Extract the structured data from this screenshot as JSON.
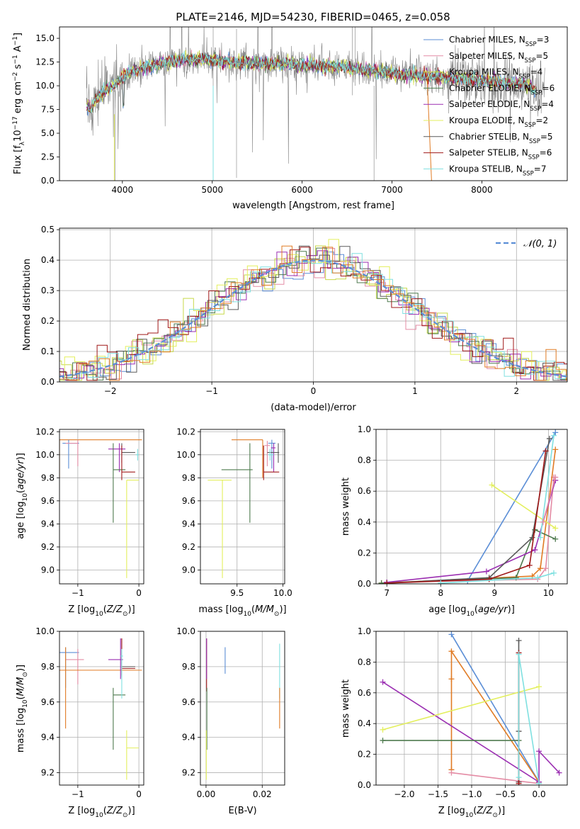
{
  "figure": {
    "title": "PLATE=2146, MJD=54230, FIBERID=0465, z=0.058"
  },
  "colors": {
    "chabrier_miles": "#5b8ed6",
    "salpeter_miles": "#e48ca5",
    "kroupa_miles": "#c7d94a",
    "chabrier_elodie": "#4e7a4e",
    "salpeter_elodie": "#9b2fb2",
    "kroupa_elodie": "#e3ef5c",
    "chabrier_stelib": "#5a5a5a",
    "salpeter_stelib": "#a01818",
    "kroupa_stelib": "#7fe0e0",
    "orange": "#e07b24",
    "data_grey": "#808080",
    "normal_curve": "#5b8ed6"
  },
  "chart_data": [
    {
      "id": "spectrum",
      "type": "line",
      "title": "PLATE=2146, MJD=54230, FIBERID=0465, z=0.058",
      "xlabel": "wavelength [Angstrom, rest frame]",
      "ylabel": "Flux [f_λ 10^-17 erg cm^-2 s^-1 A^-1]",
      "xlim": [
        3300,
        8950
      ],
      "ylim": [
        0,
        16.2
      ],
      "xticks": [
        "4000",
        "5000",
        "6000",
        "7000",
        "8000"
      ],
      "yticks": [
        "0.0",
        "2.5",
        "5.0",
        "7.5",
        "10.0",
        "12.5",
        "15.0"
      ],
      "legend": "top-right",
      "grid": false,
      "continuum": {
        "x": [
          3600,
          3650,
          3700,
          3800,
          3900,
          4000,
          4100,
          4200,
          4300,
          4400,
          4500,
          4700,
          4900,
          5100,
          5300,
          5500,
          5700,
          5900,
          6100,
          6300,
          6500,
          6700,
          6900,
          7100,
          7300,
          7500,
          7700,
          7900,
          8100,
          8300,
          8500,
          8700
        ],
        "y": [
          8.0,
          7.5,
          8.5,
          9.5,
          10.0,
          11.0,
          11.5,
          11.8,
          12.0,
          12.3,
          12.5,
          12.8,
          12.8,
          12.6,
          12.4,
          12.4,
          12.3,
          12.2,
          12.1,
          12.0,
          11.9,
          11.7,
          11.5,
          11.2,
          11.1,
          10.9,
          10.8,
          10.7,
          10.5,
          10.3,
          10.0,
          9.2
        ]
      },
      "series": [
        {
          "name": "Chabrier MILES, N_SSP=3",
          "key": "chabrier_miles",
          "dip": 0.0
        },
        {
          "name": "Salpeter MILES, N_SSP=5",
          "key": "salpeter_miles",
          "dip": 0.0
        },
        {
          "name": "Kroupa MILES, N_SSP=4",
          "key": "kroupa_miles",
          "dip": 0.0
        },
        {
          "name": "Chabrier ELODIE, N_SSP=6",
          "key": "chabrier_elodie",
          "dip": 0.0
        },
        {
          "name": "Salpeter ELODIE, N_SSP=4",
          "key": "salpeter_elodie",
          "dip": 0.0
        },
        {
          "name": "Kroupa ELODIE, N_SSP=2",
          "key": "kroupa_elodie",
          "dip": 0.0
        },
        {
          "name": "Chabrier STELIB, N_SSP=5",
          "key": "chabrier_stelib",
          "dip": 0.0
        },
        {
          "name": "Salpeter STELIB, N_SSP=6",
          "key": "salpeter_stelib",
          "dip": 0.0
        },
        {
          "name": "Kroupa STELIB, N_SSP=7",
          "key": "kroupa_stelib",
          "dip": 0.0
        }
      ]
    },
    {
      "id": "residuals",
      "type": "line",
      "xlabel": "(data-model)/error",
      "ylabel": "Normed distribution",
      "xlim": [
        -2.5,
        2.5
      ],
      "ylim": [
        0,
        0.505
      ],
      "xticks": [
        -2,
        -1,
        0,
        1,
        2
      ],
      "xtick_labels": [
        "−2",
        "−1",
        "0",
        "1",
        "2"
      ],
      "yticks": [
        0.0,
        0.1,
        0.2,
        0.3,
        0.4,
        0.5
      ],
      "ytick_labels": [
        "0.0",
        "0.1",
        "0.2",
        "0.3",
        "0.4",
        "0.5"
      ],
      "grid": true,
      "legend": "top-right",
      "legend_label": "𝒩(0, 1)",
      "bin_width": 0.1,
      "curve": "normal(0,1)"
    },
    {
      "id": "z_age",
      "type": "scatter",
      "xlabel": "Z [log10(Z/Z⊙)]",
      "ylabel": "age [log10(age/yr)]",
      "xlim": [
        -1.3,
        0.08
      ],
      "ylim": [
        8.88,
        10.22
      ],
      "xticks": [
        -1,
        0
      ],
      "xtick_labels": [
        "−1",
        "0"
      ],
      "yticks": [
        9.0,
        9.2,
        9.4,
        9.6,
        9.8,
        10.0,
        10.2
      ],
      "ytick_labels": [
        "9.0",
        "9.2",
        "9.4",
        "9.6",
        "9.8",
        "10.0",
        "10.2"
      ],
      "grid": true,
      "points": [
        {
          "key": "orange",
          "x": -1.3,
          "xe": [
            -1.3,
            0.05
          ],
          "y": 10.13,
          "ye": [
            9.8,
            10.13
          ]
        },
        {
          "key": "chabrier_miles",
          "x": -1.15,
          "xe": [
            -1.25,
            -0.98
          ],
          "y": 10.1,
          "ye": [
            9.88,
            10.13
          ]
        },
        {
          "key": "salpeter_miles",
          "x": -1.0,
          "xe": [
            -1.2,
            -1.0
          ],
          "y": 10.1,
          "ye": [
            9.9,
            10.13
          ]
        },
        {
          "key": "salpeter_elodie",
          "x": -0.32,
          "xe": [
            -0.5,
            -0.22
          ],
          "y": 10.05,
          "ye": [
            9.85,
            10.1
          ]
        },
        {
          "key": "chabrier_stelib",
          "x": -0.28,
          "xe": [
            -0.28,
            -0.06
          ],
          "y": 10.02,
          "ye": [
            9.93,
            10.1
          ]
        },
        {
          "key": "chabrier_elodie",
          "x": -0.42,
          "xe": [
            -0.42,
            -0.22
          ],
          "y": 9.87,
          "ye": [
            9.41,
            10.1
          ]
        },
        {
          "key": "salpeter_stelib",
          "x": -0.28,
          "xe": [
            -0.28,
            -0.06
          ],
          "y": 9.85,
          "ye": [
            9.78,
            10.08
          ]
        },
        {
          "key": "kroupa_elodie",
          "x": -0.2,
          "xe": [
            -0.2,
            0.0
          ],
          "y": 9.78,
          "ye": [
            8.93,
            9.78
          ]
        },
        {
          "key": "kroupa_stelib",
          "x": -0.02,
          "xe": [
            -0.05,
            0.0
          ],
          "y": 10.0,
          "ye": [
            9.95,
            10.05
          ]
        }
      ]
    },
    {
      "id": "mass_age",
      "type": "scatter",
      "xlabel": "mass [log10(M/M⊙)]",
      "ylabel": "",
      "xlim": [
        9.1,
        10.02
      ],
      "ylim": [
        8.88,
        10.22
      ],
      "xticks": [
        9.5,
        10.0
      ],
      "xtick_labels": [
        "9.5",
        "10.0"
      ],
      "yticks": [
        9.0,
        9.2,
        9.4,
        9.6,
        9.8,
        10.0,
        10.2
      ],
      "ytick_labels": [
        "9.0",
        "9.2",
        "9.4",
        "9.6",
        "9.8",
        "10.0",
        "10.2"
      ],
      "grid": true,
      "points": [
        {
          "key": "orange",
          "x": 9.78,
          "xe": [
            9.44,
            9.78
          ],
          "y": 10.13,
          "ye": [
            9.8,
            10.13
          ]
        },
        {
          "key": "chabrier_miles",
          "x": 9.88,
          "xe": [
            9.84,
            9.92
          ],
          "y": 10.1,
          "ye": [
            9.88,
            10.13
          ]
        },
        {
          "key": "salpeter_miles",
          "x": 9.83,
          "xe": [
            9.8,
            9.86
          ],
          "y": 10.08,
          "ye": [
            9.9,
            10.12
          ]
        },
        {
          "key": "salpeter_elodie",
          "x": 9.9,
          "xe": [
            9.87,
            9.92
          ],
          "y": 10.06,
          "ye": [
            9.85,
            10.1
          ]
        },
        {
          "key": "chabrier_stelib",
          "x": 9.95,
          "xe": [
            9.83,
            9.96
          ],
          "y": 10.02,
          "ye": [
            9.93,
            10.1
          ]
        },
        {
          "key": "chabrier_elodie",
          "x": 9.64,
          "xe": [
            9.33,
            9.67
          ],
          "y": 9.87,
          "ye": [
            9.41,
            10.1
          ]
        },
        {
          "key": "salpeter_stelib",
          "x": 9.79,
          "xe": [
            9.79,
            9.96
          ],
          "y": 9.85,
          "ye": [
            9.78,
            10.08
          ]
        },
        {
          "key": "kroupa_elodie",
          "x": 9.34,
          "xe": [
            9.18,
            9.44
          ],
          "y": 9.78,
          "ye": [
            8.93,
            9.78
          ]
        },
        {
          "key": "kroupa_stelib",
          "x": 9.86,
          "xe": [
            9.84,
            9.9
          ],
          "y": 10.0,
          "ye": [
            9.95,
            10.05
          ]
        }
      ]
    },
    {
      "id": "age_weight",
      "type": "line",
      "xlabel": "age [log10(age/yr)]",
      "ylabel": "mass weight",
      "xlim": [
        6.8,
        10.35
      ],
      "ylim": [
        0,
        1.0
      ],
      "xticks": [
        7,
        8,
        9,
        10
      ],
      "xtick_labels": [
        "7",
        "8",
        "9",
        "10"
      ],
      "yticks": [
        0.0,
        0.2,
        0.4,
        0.6,
        0.8,
        1.0
      ],
      "ytick_labels": [
        "0.0",
        "0.2",
        "0.4",
        "0.6",
        "0.8",
        "1.0"
      ],
      "grid": true,
      "series": [
        {
          "key": "chabrier_miles",
          "x": [
            8.5,
            10.13
          ],
          "y": [
            0.02,
            0.98
          ]
        },
        {
          "key": "salpeter_miles",
          "x": [
            7.0,
            9.8,
            9.95,
            10.1
          ],
          "y": [
            0.01,
            0.03,
            0.1,
            0.69
          ]
        },
        {
          "key": "orange",
          "x": [
            6.9,
            9.7,
            9.85,
            10.13
          ],
          "y": [
            0.005,
            0.05,
            0.1,
            0.87
          ]
        },
        {
          "key": "chabrier_elodie",
          "x": [
            6.9,
            9.4,
            9.75,
            10.13
          ],
          "y": [
            0.005,
            0.04,
            0.35,
            0.29
          ]
        },
        {
          "key": "salpeter_elodie",
          "x": [
            7.0,
            8.85,
            9.75,
            10.13
          ],
          "y": [
            0.01,
            0.08,
            0.22,
            0.67
          ]
        },
        {
          "key": "kroupa_elodie",
          "x": [
            8.95,
            10.13
          ],
          "y": [
            0.64,
            0.36
          ]
        },
        {
          "key": "chabrier_stelib",
          "x": [
            7.0,
            8.9,
            9.7,
            10.02
          ],
          "y": [
            0.005,
            0.04,
            0.3,
            0.94
          ]
        },
        {
          "key": "salpeter_stelib",
          "x": [
            7.0,
            8.9,
            9.65,
            9.95
          ],
          "y": [
            0.005,
            0.03,
            0.12,
            0.86
          ]
        },
        {
          "key": "kroupa_stelib",
          "x": [
            8.0,
            9.8,
            10.1
          ],
          "y": [
            0.005,
            0.04,
            0.07
          ]
        },
        {
          "key": "kroupa_stelib",
          "x": [
            9.85,
            10.1
          ],
          "y": [
            0.3,
            0.96
          ]
        },
        {
          "key": "salpeter_miles",
          "x": [
            9.9,
            10.13
          ],
          "y": [
            0.4,
            0.69
          ]
        }
      ]
    },
    {
      "id": "z_mass",
      "type": "scatter",
      "xlabel": "Z [log10(Z/Z⊙)]",
      "ylabel": "mass [log10(M/M⊙)]",
      "xlim": [
        -1.3,
        0.08
      ],
      "ylim": [
        9.13,
        10.0
      ],
      "xticks": [
        -1,
        0
      ],
      "xtick_labels": [
        "−1",
        "0"
      ],
      "yticks": [
        9.2,
        9.4,
        9.6,
        9.8,
        10.0
      ],
      "ytick_labels": [
        "9.2",
        "9.4",
        "9.6",
        "9.8",
        "10.0"
      ],
      "grid": true,
      "points": [
        {
          "key": "chabrier_miles",
          "x": -1.2,
          "xe": [
            -1.3,
            -0.98
          ],
          "y": 9.88,
          "ye": [
            9.68,
            9.91
          ]
        },
        {
          "key": "salpeter_miles",
          "x": -1.0,
          "xe": [
            -1.2,
            -0.9
          ],
          "y": 9.84,
          "ye": [
            9.7,
            9.9
          ]
        },
        {
          "key": "orange",
          "x": -1.2,
          "xe": [
            -1.3,
            0.05
          ],
          "y": 9.78,
          "ye": [
            9.45,
            9.91
          ]
        },
        {
          "key": "salpeter_elodie",
          "x": -0.3,
          "xe": [
            -0.5,
            -0.26
          ],
          "y": 9.84,
          "ye": [
            9.73,
            9.96
          ]
        },
        {
          "key": "chabrier_stelib",
          "x": -0.28,
          "xe": [
            -0.28,
            -0.06
          ],
          "y": 9.8,
          "ye": [
            9.74,
            9.96
          ]
        },
        {
          "key": "chabrier_elodie",
          "x": -0.42,
          "xe": [
            -0.42,
            -0.22
          ],
          "y": 9.64,
          "ye": [
            9.33,
            9.68
          ]
        },
        {
          "key": "salpeter_stelib",
          "x": -0.28,
          "xe": [
            -0.28,
            -0.06
          ],
          "y": 9.79,
          "ye": [
            9.75,
            9.96
          ]
        },
        {
          "key": "kroupa_elodie",
          "x": -0.2,
          "xe": [
            -0.2,
            0.0
          ],
          "y": 9.34,
          "ye": [
            9.16,
            9.44
          ]
        },
        {
          "key": "kroupa_stelib",
          "x": -0.28,
          "xe": [
            -0.3,
            -0.26
          ],
          "y": 9.86,
          "ye": [
            9.62,
            9.9
          ]
        }
      ]
    },
    {
      "id": "ebv_mass",
      "type": "scatter",
      "xlabel": "E(B-V)",
      "ylabel": "",
      "xlim": [
        -0.002,
        0.028
      ],
      "ylim": [
        9.13,
        10.0
      ],
      "xticks": [
        0.0,
        0.02
      ],
      "xtick_labels": [
        "0.00",
        "0.02"
      ],
      "yticks": [
        9.2,
        9.4,
        9.6,
        9.8,
        10.0
      ],
      "ytick_labels": [
        "9.2",
        "9.4",
        "9.6",
        "9.8",
        "10.0"
      ],
      "grid": true,
      "points": [
        {
          "key": "salpeter_stelib",
          "x": 0.0002,
          "y": 9.8,
          "ye": [
            9.66,
            9.96
          ]
        },
        {
          "key": "salpeter_elodie",
          "x": 0.0002,
          "y": 9.84,
          "ye": [
            9.73,
            9.96
          ]
        },
        {
          "key": "chabrier_elodie",
          "x": 0.0003,
          "y": 9.6,
          "ye": [
            9.33,
            9.68
          ]
        },
        {
          "key": "kroupa_elodie",
          "x": 0.0001,
          "y": 9.34,
          "ye": [
            9.16,
            9.44
          ]
        },
        {
          "key": "chabrier_miles",
          "x": 0.0068,
          "y": 9.84,
          "ye": [
            9.76,
            9.91
          ]
        },
        {
          "key": "kroupa_stelib",
          "x": 0.0262,
          "y": 9.86,
          "ye": [
            9.62,
            9.93
          ]
        },
        {
          "key": "orange",
          "x": 0.0262,
          "y": 9.6,
          "ye": [
            9.45,
            9.68
          ]
        }
      ]
    },
    {
      "id": "z_weight",
      "type": "line",
      "xlabel": "Z [log10(Z/Z⊙)]",
      "ylabel": "mass weight",
      "xlim": [
        -2.42,
        0.42
      ],
      "ylim": [
        0,
        1.0
      ],
      "xticks": [
        -2.0,
        -1.5,
        -1.0,
        -0.5,
        0.0
      ],
      "xtick_labels": [
        "−2.0",
        "−1.5",
        "−1.0",
        "−0.5",
        "0.0"
      ],
      "yticks": [
        0.0,
        0.2,
        0.4,
        0.6,
        0.8,
        1.0
      ],
      "ytick_labels": [
        "0.0",
        "0.2",
        "0.4",
        "0.6",
        "0.8",
        "1.0"
      ],
      "grid": true,
      "series": [
        {
          "key": "chabrier_miles",
          "x": [
            -1.3,
            0.0
          ],
          "y": [
            0.98,
            0.02
          ]
        },
        {
          "key": "orange",
          "x": [
            -1.3,
            -1.3,
            -1.3,
            0.0
          ],
          "y": [
            0.1,
            0.69,
            0.87,
            0.02
          ]
        },
        {
          "key": "salpeter_miles",
          "x": [
            -1.3,
            0.0
          ],
          "y": [
            0.08,
            0.01
          ]
        },
        {
          "key": "salpeter_elodie",
          "x": [
            -2.32,
            0.0,
            0.0,
            0.3
          ],
          "y": [
            0.67,
            0.02,
            0.22,
            0.08
          ]
        },
        {
          "key": "kroupa_elodie",
          "x": [
            -2.32,
            0.0
          ],
          "y": [
            0.36,
            0.64
          ]
        },
        {
          "key": "chabrier_elodie",
          "x": [
            -2.32,
            -0.3
          ],
          "y": [
            0.29,
            0.29
          ]
        },
        {
          "key": "chabrier_stelib",
          "x": [
            -0.3,
            -0.3,
            -0.3
          ],
          "y": [
            0.35,
            0.94,
            0.02
          ]
        },
        {
          "key": "salpeter_stelib",
          "x": [
            -0.3,
            -0.3
          ],
          "y": [
            0.01,
            0.86
          ]
        },
        {
          "key": "kroupa_stelib",
          "x": [
            -0.3,
            -0.3,
            0.0
          ],
          "y": [
            0.05,
            0.85,
            0.01
          ]
        }
      ]
    }
  ]
}
